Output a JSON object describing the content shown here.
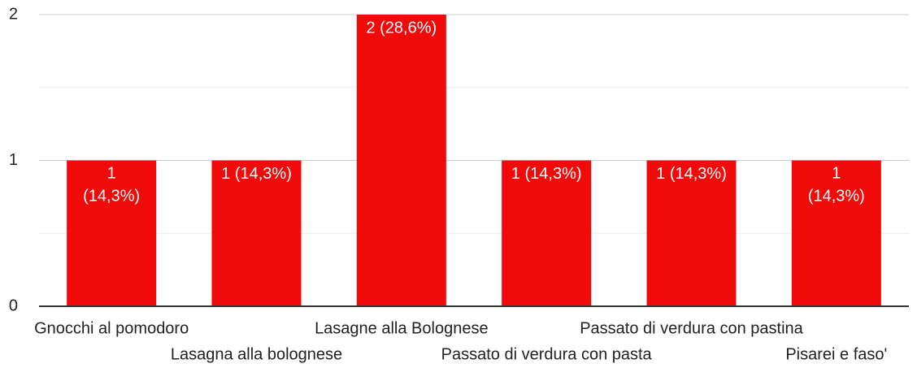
{
  "chart_data": {
    "type": "bar",
    "categories": [
      "Gnocchi al pomodoro",
      "Lasagna alla bolognese",
      "Lasagne alla Bolognese",
      "Passato di verdura con pasta",
      "Passato di verdura con pastina",
      "Pisarei e faso'"
    ],
    "values": [
      1,
      1,
      2,
      1,
      1,
      1
    ],
    "value_labels": [
      "1 (14,3%)",
      "1 (14,3%)",
      "2 (28,6%)",
      "1 (14,3%)",
      "1 (14,3%)",
      "1 (14,3%)"
    ],
    "color": "#f00a0a",
    "ylim": [
      0,
      2
    ],
    "yticks": [
      0,
      1,
      2
    ],
    "minor_yticks": [
      0.5,
      1.5
    ],
    "grid": true
  }
}
